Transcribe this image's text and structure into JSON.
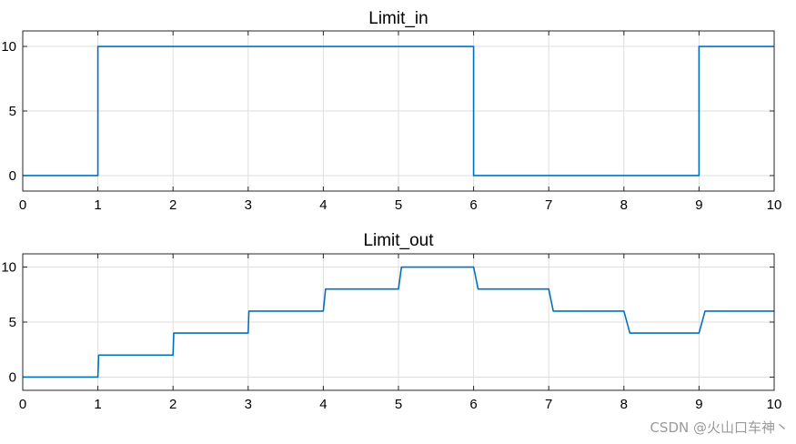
{
  "chart_data": [
    {
      "type": "line",
      "title": "Limit_in",
      "xlabel": "",
      "ylabel": "",
      "xlim": [
        0,
        10
      ],
      "ylim": [
        -1.2,
        11.2
      ],
      "xticks": [
        "0",
        "1",
        "2",
        "3",
        "4",
        "5",
        "6",
        "7",
        "8",
        "9",
        "10"
      ],
      "yticks": [
        "0",
        "5",
        "10"
      ],
      "grid": true,
      "series_color": "#0072BD",
      "series": [
        {
          "x": [
            0,
            1,
            1,
            6,
            6,
            9,
            9,
            10
          ],
          "y": [
            0,
            0,
            10,
            10,
            0,
            0,
            10,
            10
          ]
        }
      ]
    },
    {
      "type": "line",
      "title": "Limit_out",
      "xlabel": "",
      "ylabel": "",
      "xlim": [
        0,
        10
      ],
      "ylim": [
        -1.2,
        11.2
      ],
      "xticks": [
        "0",
        "1",
        "2",
        "3",
        "4",
        "5",
        "6",
        "7",
        "8",
        "9",
        "10"
      ],
      "yticks": [
        "0",
        "5",
        "10"
      ],
      "grid": true,
      "series_color": "#0072BD",
      "series": [
        {
          "x": [
            0,
            1,
            1.01,
            2,
            2.01,
            3,
            3.01,
            4,
            4.03,
            5,
            5.04,
            6,
            6.06,
            7,
            7.06,
            8,
            8.08,
            9,
            9.08,
            10
          ],
          "y": [
            0,
            0,
            2,
            2,
            4,
            4,
            6,
            6,
            8,
            8,
            10,
            10,
            8,
            8,
            6,
            6,
            4,
            4,
            6,
            6
          ]
        }
      ]
    }
  ],
  "watermark": "CSDN @火山口车神丶"
}
